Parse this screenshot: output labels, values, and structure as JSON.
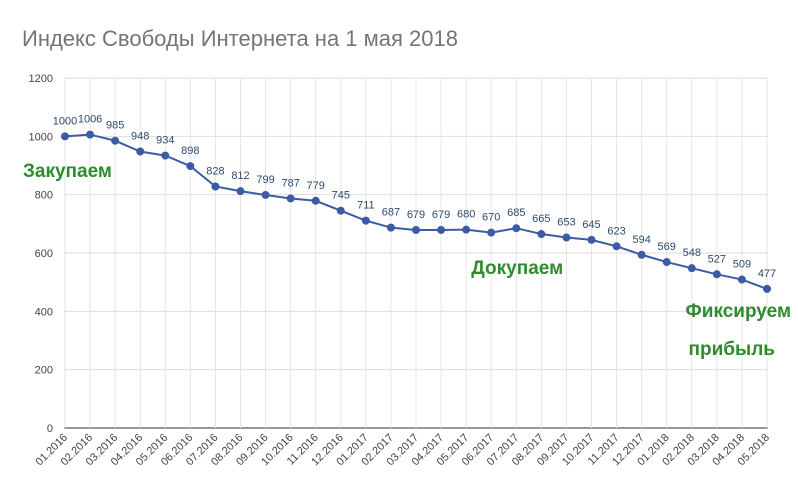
{
  "chart_data": {
    "type": "line",
    "title": "Индекс Свободы Интернета на 1 мая 2018",
    "categories": [
      "01.2016",
      "02.2016",
      "03.2016",
      "04.2016",
      "05.2016",
      "06.2016",
      "07.2016",
      "08.2016",
      "09.2016",
      "10.2016",
      "11.2016",
      "12.2016",
      "01.2017",
      "02.2017",
      "03.2017",
      "04.2017",
      "05.2017",
      "06.2017",
      "07.2017",
      "08.2017",
      "09.2017",
      "10.2017",
      "11.2017",
      "12.2017",
      "01.2018",
      "02.2018",
      "03.2018",
      "04.2018",
      "05.2018"
    ],
    "values": [
      1000,
      1006,
      985,
      948,
      934,
      898,
      828,
      812,
      799,
      787,
      779,
      745,
      711,
      687,
      679,
      679,
      680,
      670,
      685,
      665,
      653,
      645,
      623,
      594,
      569,
      548,
      527,
      509,
      477
    ],
    "ylim": [
      0,
      1200
    ],
    "yticks": [
      0,
      200,
      400,
      600,
      800,
      1000,
      1200
    ],
    "grid": true,
    "line_color": "#3b5ba5",
    "annotation_color": "#2e8b2e",
    "annotations": [
      {
        "text": "Закупаем",
        "at_category": "01.2016",
        "anchor": "start"
      },
      {
        "text": "Докупаем",
        "at_category": "06.2017",
        "anchor": "middle"
      },
      {
        "text": "Фиксируем",
        "at_category": "05.2018",
        "anchor": "end"
      },
      {
        "text": "прибыль",
        "at_category": "05.2018",
        "anchor": "end"
      }
    ]
  }
}
